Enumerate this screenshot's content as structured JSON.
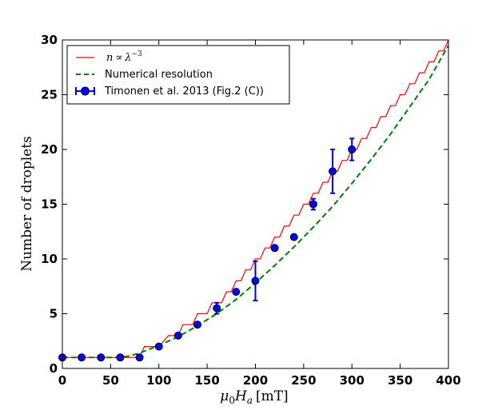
{
  "chart_data": {
    "type": "line",
    "xlabel_parts": {
      "sym": "μ",
      "sub0": "0",
      "H": "H",
      "suba": "a",
      "unit": "[mT]"
    },
    "ylabel": "Number of droplets",
    "xlim": [
      0,
      400
    ],
    "ylim": [
      0,
      30
    ],
    "xticks": [
      0,
      50,
      100,
      150,
      200,
      250,
      300,
      350,
      400
    ],
    "yticks": [
      0,
      5,
      10,
      15,
      20,
      25,
      30
    ],
    "grid": false,
    "legend_position": "top-left",
    "series": [
      {
        "name": "n ∝ λ⁻³",
        "legend_parts": {
          "n": "n",
          "prop": "∝",
          "lambda": "λ",
          "exp": "−3"
        },
        "kind": "step",
        "color": "#ff0000",
        "x": [
          0,
          80,
          85,
          100,
          110,
          120,
          125,
          135,
          140,
          150,
          155,
          165,
          170,
          175,
          180,
          185,
          190,
          195,
          200,
          205,
          210,
          215,
          220,
          225,
          230,
          235,
          240,
          245,
          250,
          255,
          260,
          265,
          270,
          275,
          280,
          285,
          290,
          295,
          300,
          305,
          310,
          315,
          320,
          325,
          330,
          335,
          340,
          345,
          350,
          355,
          360,
          365,
          370,
          375,
          380,
          385,
          390,
          395,
          400
        ],
        "y": [
          1,
          1,
          2,
          2,
          3,
          3,
          4,
          4,
          5,
          5,
          6,
          6,
          7,
          7,
          8,
          8,
          9,
          9,
          10,
          10,
          11,
          11,
          12,
          12,
          13,
          13,
          14,
          14,
          15,
          15,
          16,
          16,
          17,
          17,
          18,
          18,
          19,
          19,
          20,
          20,
          21,
          21,
          22,
          22,
          23,
          23,
          24,
          24,
          25,
          25,
          26,
          26,
          27,
          27,
          28,
          28,
          29,
          29,
          30
        ]
      },
      {
        "name": "Numerical resolution",
        "kind": "line",
        "dash": true,
        "color": "#008000",
        "x": [
          0,
          60,
          70,
          80,
          100,
          120,
          140,
          160,
          180,
          200,
          220,
          240,
          260,
          280,
          300,
          320,
          340,
          360,
          380,
          400
        ],
        "y": [
          1,
          1,
          1.15,
          1.4,
          2.1,
          2.9,
          3.9,
          5.0,
          6.3,
          7.8,
          9.4,
          11.1,
          12.9,
          14.8,
          16.9,
          19.1,
          21.4,
          23.9,
          26.4,
          29.5
        ]
      },
      {
        "name": "Timonen et al. 2013 (Fig.2 (C))",
        "kind": "errorbar",
        "color": "#0000cc",
        "x": [
          0,
          20,
          40,
          60,
          80,
          100,
          120,
          140,
          160,
          180,
          200,
          220,
          240,
          260,
          280,
          300
        ],
        "y": [
          1,
          1,
          1,
          1,
          1,
          2,
          3,
          4,
          5.5,
          7,
          8,
          11,
          12,
          15,
          18,
          20
        ],
        "yerr": [
          0,
          0,
          0,
          0,
          0,
          0,
          0,
          0,
          0.5,
          0,
          1.8,
          0,
          0,
          0.5,
          2,
          1
        ]
      }
    ]
  }
}
